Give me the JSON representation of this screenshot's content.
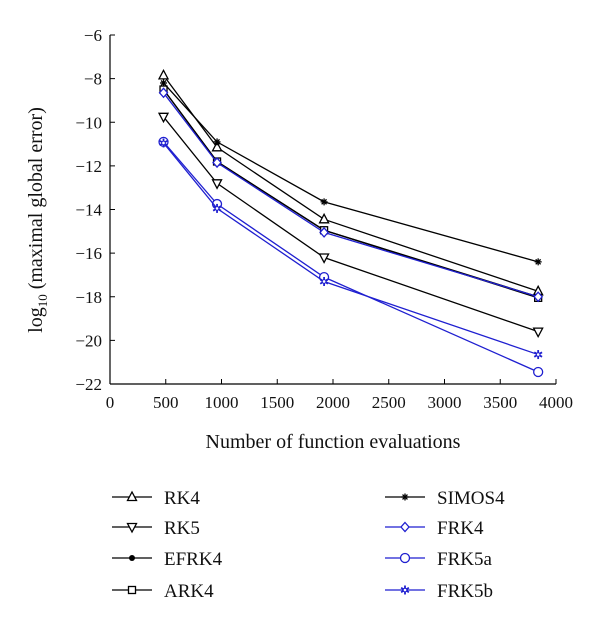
{
  "chart_data": {
    "type": "line",
    "title": "",
    "xlabel": "Number of function evaluations",
    "ylabel": "log",
    "ylabel_sub": "10",
    "ylabel_rest": " (maximal global error)",
    "xlim": [
      0,
      4000
    ],
    "ylim": [
      -22,
      -6
    ],
    "xticks": [
      0,
      500,
      1000,
      1500,
      2000,
      2500,
      3000,
      3500,
      4000
    ],
    "yticks": [
      -6,
      -8,
      -10,
      -12,
      -14,
      -16,
      -18,
      -20,
      -22
    ],
    "xtick_labels": [
      "0",
      "500",
      "1000",
      "1500",
      "2000",
      "2500",
      "3000",
      "3500",
      "4000"
    ],
    "ytick_labels": [
      "−6",
      "−8",
      "−10",
      "−12",
      "−14",
      "−16",
      "−18",
      "−20",
      "−22"
    ],
    "grid": false,
    "legend_placement": "bottom",
    "x": [
      480,
      960,
      1920,
      3840
    ],
    "series": [
      {
        "name": "RK4",
        "marker": "triangle-up",
        "color": "#000000",
        "values": [
          -7.85,
          -11.15,
          -14.45,
          -17.75
        ]
      },
      {
        "name": "RK5",
        "marker": "triangle-down",
        "color": "#000000",
        "values": [
          -9.75,
          -12.8,
          -16.2,
          -19.6
        ]
      },
      {
        "name": "EFRK4",
        "marker": "dot",
        "color": "#000000",
        "values": [
          -8.5,
          -11.8,
          -14.95,
          -18.0
        ]
      },
      {
        "name": "ARK4",
        "marker": "square",
        "color": "#000000",
        "values": [
          -8.5,
          -11.8,
          -14.95,
          -18.05
        ]
      },
      {
        "name": "SIMOS4",
        "marker": "asterisk",
        "color": "#000000",
        "values": [
          -8.2,
          -10.9,
          -13.65,
          -16.4
        ]
      },
      {
        "name": "FRK4",
        "marker": "diamond",
        "color": "#1f1fd0",
        "values": [
          -8.65,
          -11.85,
          -15.05,
          -18.0
        ]
      },
      {
        "name": "FRK5a",
        "marker": "circle",
        "color": "#1f1fd0",
        "values": [
          -10.9,
          -13.75,
          -17.1,
          -21.45
        ]
      },
      {
        "name": "FRK5b",
        "marker": "star",
        "color": "#1f1fd0",
        "values": [
          -10.95,
          -13.95,
          -17.3,
          -20.65
        ]
      }
    ]
  }
}
